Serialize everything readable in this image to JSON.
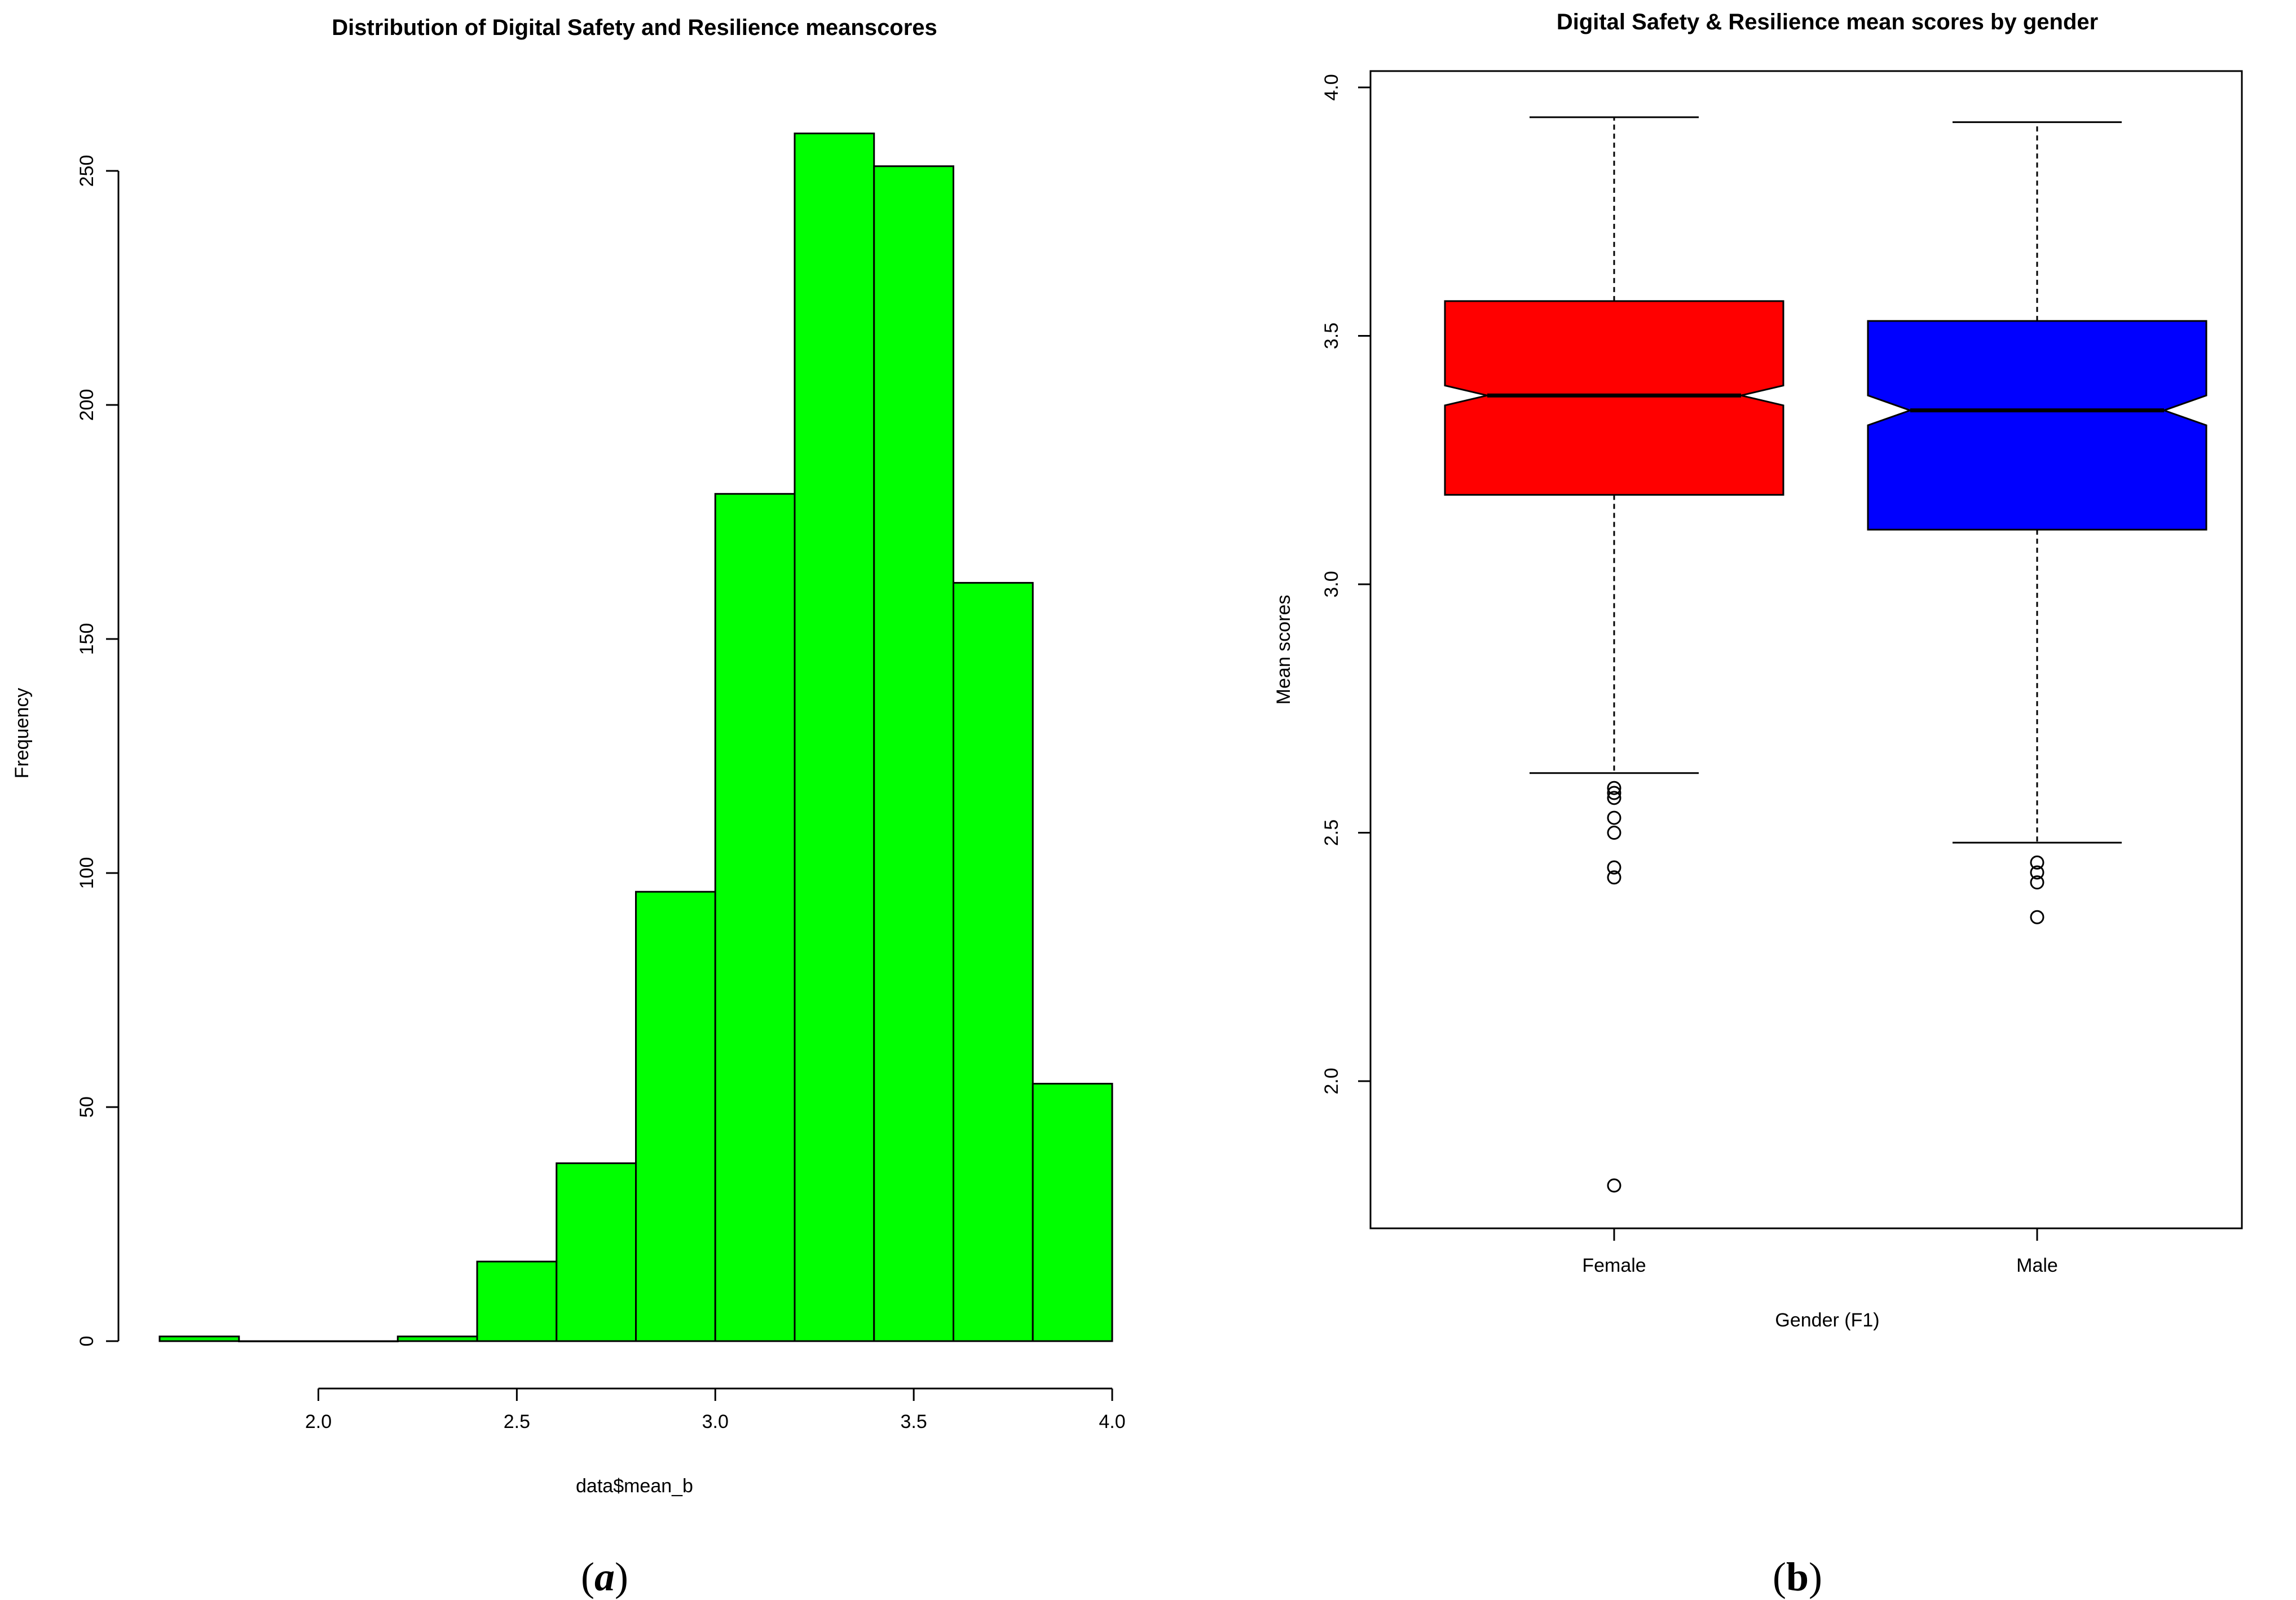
{
  "colors": {
    "histogram_fill": "#00ff00",
    "female_box": "#ff0000",
    "male_box": "#0000ff",
    "stroke": "#000000"
  },
  "chart_data": [
    {
      "type": "bar",
      "subtype": "histogram",
      "panel": "a",
      "title": "Distribution of Digital Safety and Resilience meanscores",
      "xlabel": "data$mean_b",
      "ylabel": "Frequency",
      "bin_edges": [
        1.6,
        1.8,
        2.0,
        2.2,
        2.4,
        2.6,
        2.8,
        3.0,
        3.2,
        3.4,
        3.6,
        3.8,
        4.0
      ],
      "values": [
        1,
        0,
        0,
        1,
        17,
        38,
        96,
        181,
        258,
        251,
        162,
        55
      ],
      "x_ticks": [
        "2.0",
        "2.5",
        "3.0",
        "3.5",
        "4.0"
      ],
      "x_tick_values": [
        2.0,
        2.5,
        3.0,
        3.5,
        4.0
      ],
      "y_ticks": [
        "0",
        "50",
        "100",
        "150",
        "200",
        "250"
      ],
      "y_tick_values": [
        0,
        50,
        100,
        150,
        200,
        250
      ],
      "xlim": [
        1.6,
        4.0
      ],
      "ylim": [
        0,
        270
      ]
    },
    {
      "type": "box",
      "panel": "b",
      "title": "Digital Safety & Resilience mean scores by gender",
      "xlabel": "Gender (F1)",
      "ylabel": "Mean scores",
      "notched": true,
      "categories": [
        "Female",
        "Male"
      ],
      "series": [
        {
          "name": "Female",
          "whisker_low": 2.62,
          "q1": 3.18,
          "median": 3.38,
          "q3": 3.57,
          "whisker_high": 3.94,
          "notch_low": 3.36,
          "notch_high": 3.4,
          "outliers": [
            2.59,
            2.58,
            2.57,
            2.53,
            2.5,
            2.43,
            2.41,
            1.79
          ]
        },
        {
          "name": "Male",
          "whisker_low": 2.48,
          "q1": 3.11,
          "median": 3.35,
          "q3": 3.53,
          "whisker_high": 3.93,
          "notch_low": 3.32,
          "notch_high": 3.38,
          "outliers": [
            2.44,
            2.42,
            2.4,
            2.33
          ]
        }
      ],
      "y_ticks": [
        "2.0",
        "2.5",
        "3.0",
        "3.5",
        "4.0"
      ],
      "y_tick_values": [
        2.0,
        2.5,
        3.0,
        3.5,
        4.0
      ],
      "ylim": [
        1.7,
        4.03
      ]
    }
  ],
  "panel_labels": {
    "a_open": "(",
    "a_letter": "a",
    "a_close": ")",
    "b_open": "(",
    "b_letter": "b",
    "b_close": ")"
  }
}
